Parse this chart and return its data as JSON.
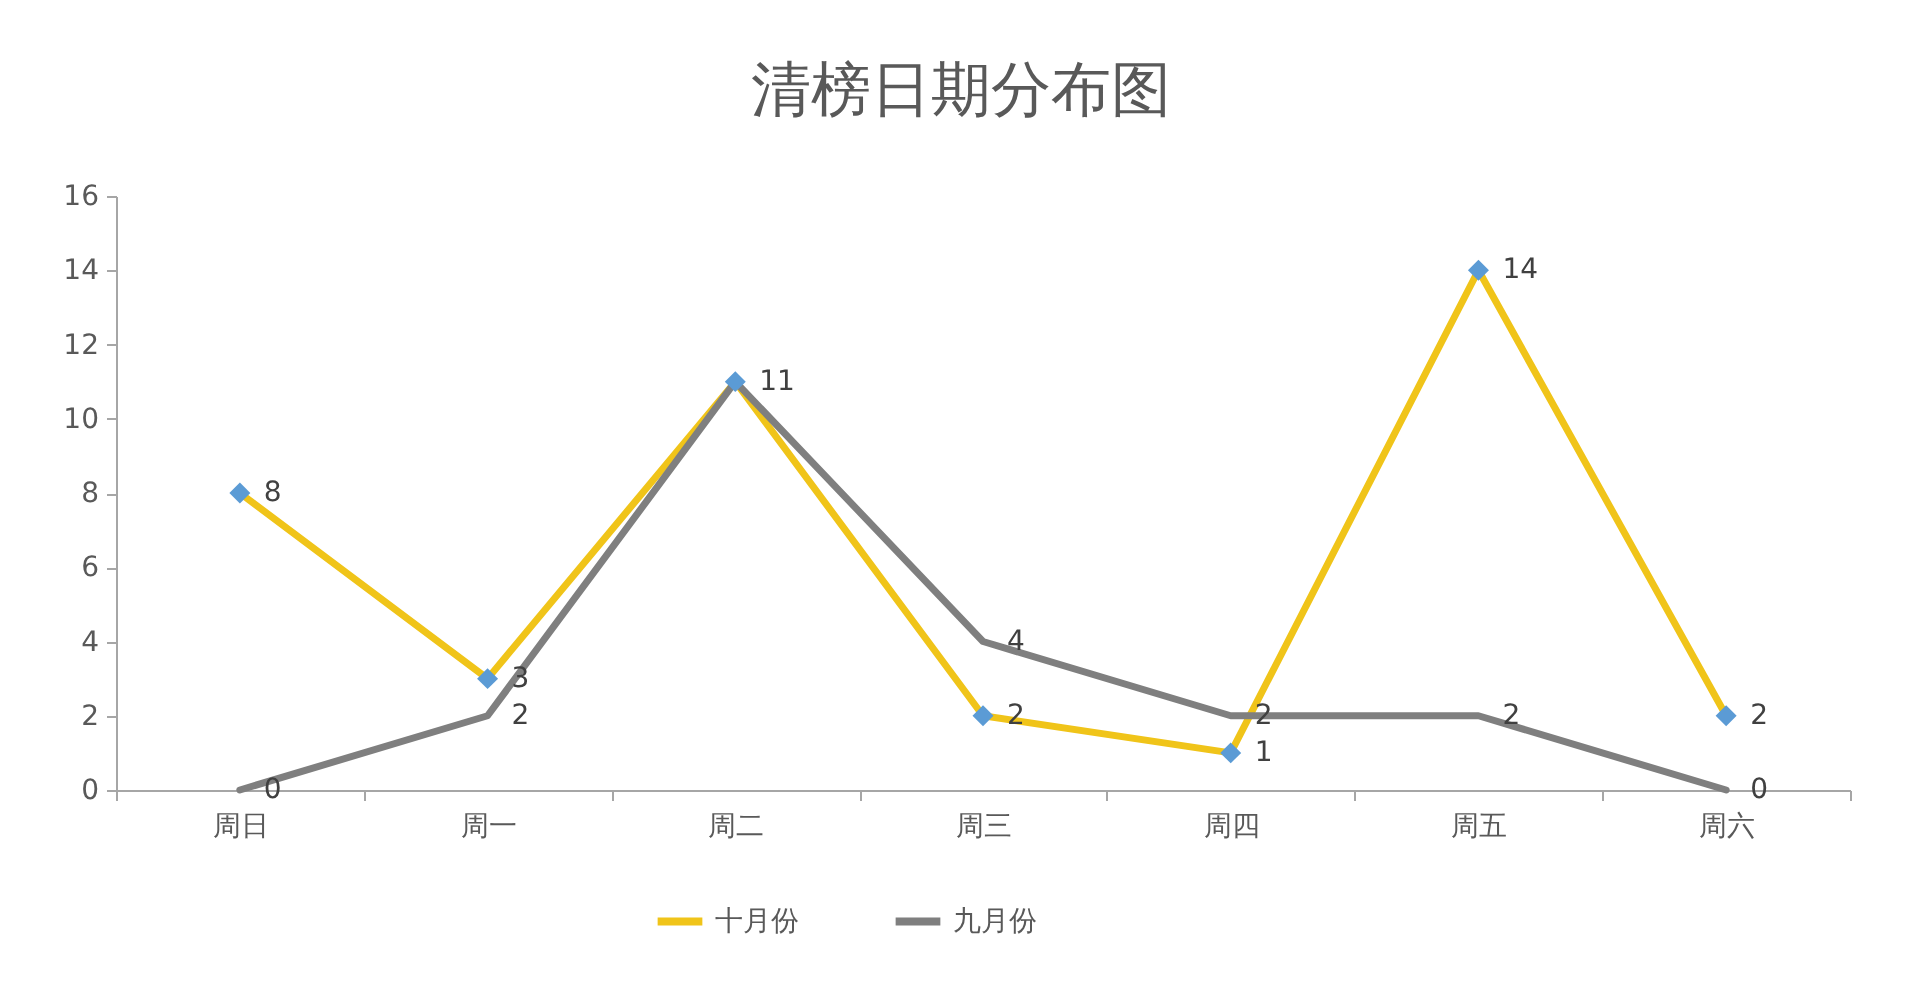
{
  "chart_data": {
    "type": "line",
    "title": "清榜日期分布图",
    "categories": [
      "周日",
      "周一",
      "周二",
      "周三",
      "周四",
      "周五",
      "周六"
    ],
    "series": [
      {
        "name": "十月份",
        "color": "#f0c419",
        "values": [
          8,
          3,
          11,
          2,
          1,
          14,
          2
        ],
        "marker": "diamond",
        "colors": [
          "#5b9bd5",
          "#5b9bd5",
          "#5b9bd5",
          "#5b9bd5",
          "#5b9bd5",
          "#5b9bd5",
          "#5b9bd5"
        ]
      },
      {
        "name": "九月份",
        "color": "#7f7f7f",
        "values": [
          0,
          2,
          11,
          4,
          2,
          2,
          0
        ],
        "marker": "none",
        "value_labels": [
          "0",
          "2",
          null,
          "4",
          "2",
          "2",
          "0"
        ]
      }
    ],
    "ylim": [
      0,
      16
    ],
    "yticks": [
      0,
      2,
      4,
      6,
      8,
      10,
      12,
      14,
      16
    ],
    "grid": false,
    "data_labels": true,
    "legend": "bottom"
  }
}
